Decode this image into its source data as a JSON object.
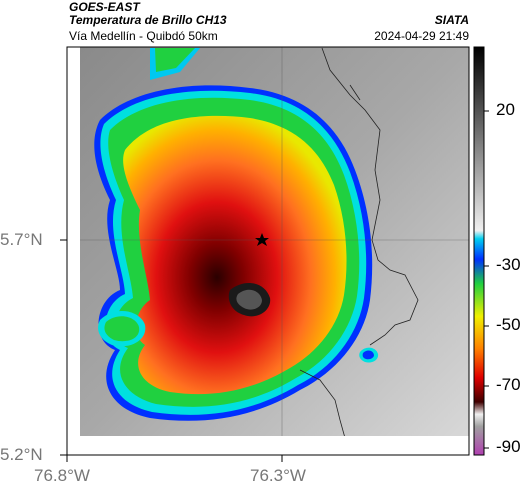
{
  "header": {
    "satellite": "GOES-EAST",
    "product": "Temperatura de Brillo CH13",
    "location": "Vía Medellín - Quibdó 50km",
    "brand": "SIATA",
    "timestamp": "2024-04-29 21:49"
  },
  "map": {
    "lat_labels": [
      "5.7°N",
      "5.2°N"
    ],
    "lon_labels": [
      "76.8°W",
      "76.3°W"
    ],
    "marker": "star-icon"
  },
  "colorbar": {
    "labels": [
      "20",
      "-30",
      "-50",
      "-70",
      "-90"
    ],
    "colors": {
      "warm_gray_top": "#1a1a1a",
      "cyan": "#00d0f0",
      "blue": "#0030ff",
      "green": "#20d040",
      "yellow": "#f0f000",
      "orange": "#ff8000",
      "red": "#e00000",
      "dark_red": "#400000",
      "magenta": "#d040c0"
    }
  }
}
